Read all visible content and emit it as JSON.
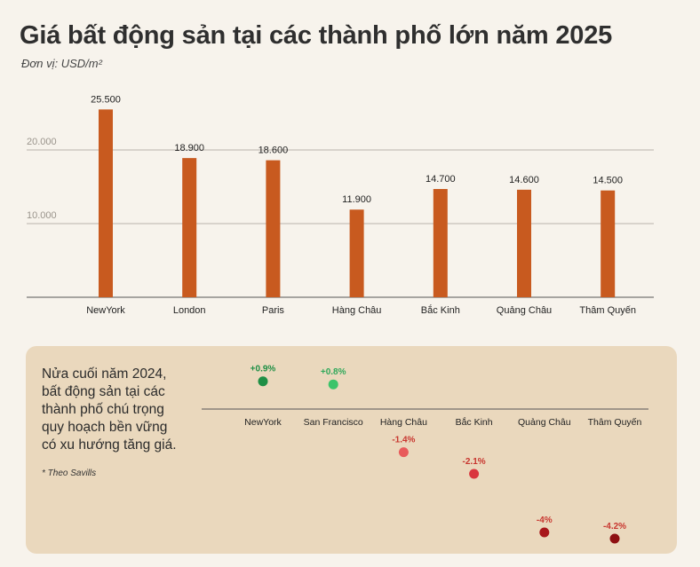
{
  "header": {
    "title": "Giá bất động sản tại các thành phố lớn năm 2025",
    "unit": "Đơn vị: USD/m²"
  },
  "chart_data": [
    {
      "type": "bar",
      "categories": [
        "NewYork",
        "London",
        "Paris",
        "Hàng Châu",
        "Bắc Kinh",
        "Quảng Châu",
        "Thâm Quyến"
      ],
      "values": [
        25500,
        18900,
        18600,
        11900,
        14700,
        14600,
        14500
      ],
      "value_labels": [
        "25.500",
        "18.900",
        "18.600",
        "11.900",
        "14.700",
        "14.600",
        "14.500"
      ],
      "y_ticks": [
        {
          "value": 10000,
          "label": "10.000"
        },
        {
          "value": 20000,
          "label": "20.000"
        }
      ],
      "ylim": [
        0,
        27000
      ],
      "grid": true,
      "bar_color": "#c85a1f"
    },
    {
      "type": "scatter",
      "categories": [
        "NewYork",
        "San Francisco",
        "Hàng Châu",
        "Bắc Kinh",
        "Quảng Châu",
        "Thâm Quyến"
      ],
      "values": [
        0.9,
        0.8,
        -1.4,
        -2.1,
        -4.0,
        -4.2
      ],
      "value_labels": [
        "+0.9%",
        "+0.8%",
        "-1.4%",
        "-2.1%",
        "-4%",
        "-4.2%"
      ],
      "point_colors": [
        "#1f8f45",
        "#3cc46a",
        "#e85b5b",
        "#d9363e",
        "#a8171b",
        "#8e1012"
      ],
      "label_colors": [
        "#1f8f45",
        "#2fa85a",
        "#c8362f",
        "#c8362f",
        "#c8362f",
        "#c8362f"
      ],
      "ylim": [
        -4.5,
        1.3
      ]
    }
  ],
  "panel": {
    "text_lines": [
      "Nửa cuối năm 2024,",
      "bất động sản tại các",
      "thành phố chú trọng",
      "quy hoạch bền vững",
      "có xu hướng tăng giá."
    ],
    "note": "* Theo Savills"
  }
}
